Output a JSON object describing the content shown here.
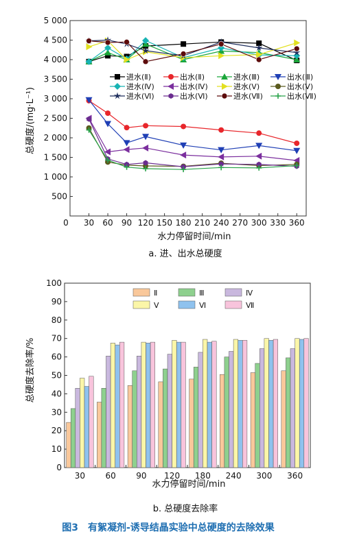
{
  "chart_data": [
    {
      "type": "line",
      "title": "",
      "xlabel": "水力停留时间/min",
      "ylabel": "总硬度/(mg·L⁻¹)",
      "caption": "a. 进、出水总硬度",
      "x": [
        30,
        60,
        90,
        120,
        180,
        240,
        300,
        360
      ],
      "x_ticks": [
        "0",
        "30",
        "60",
        "90",
        "120",
        "150",
        "180",
        "210",
        "240",
        "270",
        "300",
        "330",
        "360"
      ],
      "y_ticks": [
        "500",
        "1 000",
        "1 500",
        "2 000",
        "2 500",
        "3 000",
        "3 500",
        "4 000",
        "4 500",
        "5 000"
      ],
      "xlim": [
        0,
        375
      ],
      "ylim": [
        0,
        5000
      ],
      "grid": false,
      "legend_position": "upper-middle",
      "series": [
        {
          "name": "进水(Ⅱ)",
          "color": "#000000",
          "marker": "square",
          "values": [
            3950,
            4100,
            4080,
            4350,
            4400,
            4450,
            4420,
            3980
          ]
        },
        {
          "name": "出水(Ⅱ)",
          "color": "#e8262b",
          "marker": "circle",
          "values": [
            2950,
            2630,
            2260,
            2310,
            2290,
            2200,
            2120,
            1860
          ]
        },
        {
          "name": "进水(Ⅲ)",
          "color": "#1ba63a",
          "marker": "triangle-up",
          "values": [
            3950,
            4180,
            4000,
            4400,
            4000,
            4220,
            4180,
            4000
          ]
        },
        {
          "name": "出水(Ⅲ)",
          "color": "#1f3fb5",
          "marker": "triangle-down",
          "values": [
            2970,
            2360,
            1870,
            2030,
            1810,
            1690,
            1800,
            1670
          ]
        },
        {
          "name": "进水(Ⅳ)",
          "color": "#18b4b4",
          "marker": "diamond",
          "values": [
            3950,
            4300,
            4020,
            4490,
            4050,
            4300,
            4120,
            4100
          ]
        },
        {
          "name": "出水(Ⅳ)",
          "color": "#7b2f9e",
          "marker": "triangle-left",
          "values": [
            2500,
            1640,
            1700,
            1740,
            1560,
            1510,
            1530,
            1420
          ]
        },
        {
          "name": "进水(Ⅴ)",
          "color": "#e3e020",
          "marker": "triangle-right",
          "values": [
            4330,
            4480,
            4000,
            4200,
            4050,
            4100,
            4130,
            4430
          ]
        },
        {
          "name": "出水(Ⅴ)",
          "color": "#5a5a1e",
          "marker": "circle",
          "values": [
            2250,
            1380,
            1300,
            1280,
            1270,
            1350,
            1290,
            1320
          ]
        },
        {
          "name": "进水(Ⅵ)",
          "color": "#1e2d5c",
          "marker": "star",
          "values": [
            4480,
            4500,
            4400,
            4230,
            4100,
            4450,
            4300,
            4180
          ]
        },
        {
          "name": "出水(Ⅵ)",
          "color": "#6a2c8f",
          "marker": "hexagon",
          "values": [
            2480,
            1460,
            1320,
            1360,
            1260,
            1330,
            1320,
            1270
          ]
        },
        {
          "name": "进水(Ⅶ)",
          "color": "#5c0b0b",
          "marker": "circle-dot",
          "values": [
            4480,
            4440,
            4450,
            3950,
            4150,
            4400,
            4000,
            4280
          ]
        },
        {
          "name": "出水(Ⅶ)",
          "color": "#29a34a",
          "marker": "plus",
          "values": [
            2200,
            1430,
            1250,
            1210,
            1190,
            1240,
            1230,
            1290
          ]
        }
      ]
    },
    {
      "type": "bar",
      "title": "",
      "xlabel": "水力停留时间/min",
      "ylabel": "总硬度去除率/%",
      "caption": "b. 总硬度去除率",
      "categories": [
        "30",
        "60",
        "90",
        "120",
        "180",
        "240",
        "300",
        "360"
      ],
      "y_ticks": [
        "0",
        "10",
        "20",
        "30",
        "40",
        "50",
        "60",
        "70",
        "80",
        "90",
        "100"
      ],
      "ylim": [
        0,
        100
      ],
      "grid": false,
      "legend_position": "top-center",
      "series": [
        {
          "name": "Ⅱ",
          "color": "#f9c89b",
          "values": [
            24.5,
            35.5,
            44.5,
            46.5,
            48,
            50.5,
            51.5,
            52.5
          ]
        },
        {
          "name": "Ⅲ",
          "color": "#8ed08e",
          "values": [
            32,
            43,
            52.5,
            53.5,
            54.5,
            60,
            56.5,
            59.5
          ]
        },
        {
          "name": "Ⅳ",
          "color": "#c9b8de",
          "values": [
            43,
            60.5,
            60.5,
            61.5,
            62.5,
            63,
            64.5,
            64.5
          ]
        },
        {
          "name": "Ⅴ",
          "color": "#fbf6a8",
          "values": [
            48.5,
            67.5,
            68,
            69,
            69.5,
            69.5,
            70,
            70
          ]
        },
        {
          "name": "Ⅵ",
          "color": "#8fc2ee",
          "values": [
            44,
            66.5,
            67.5,
            68,
            68,
            69,
            69,
            69.5
          ]
        },
        {
          "name": "Ⅶ",
          "color": "#f8c4dc",
          "values": [
            49.5,
            68,
            68,
            68,
            68.5,
            69,
            69.5,
            70
          ]
        }
      ]
    }
  ],
  "figure_caption": "图3　有絮凝剂-诱导结晶实验中总硬度的去除效果"
}
